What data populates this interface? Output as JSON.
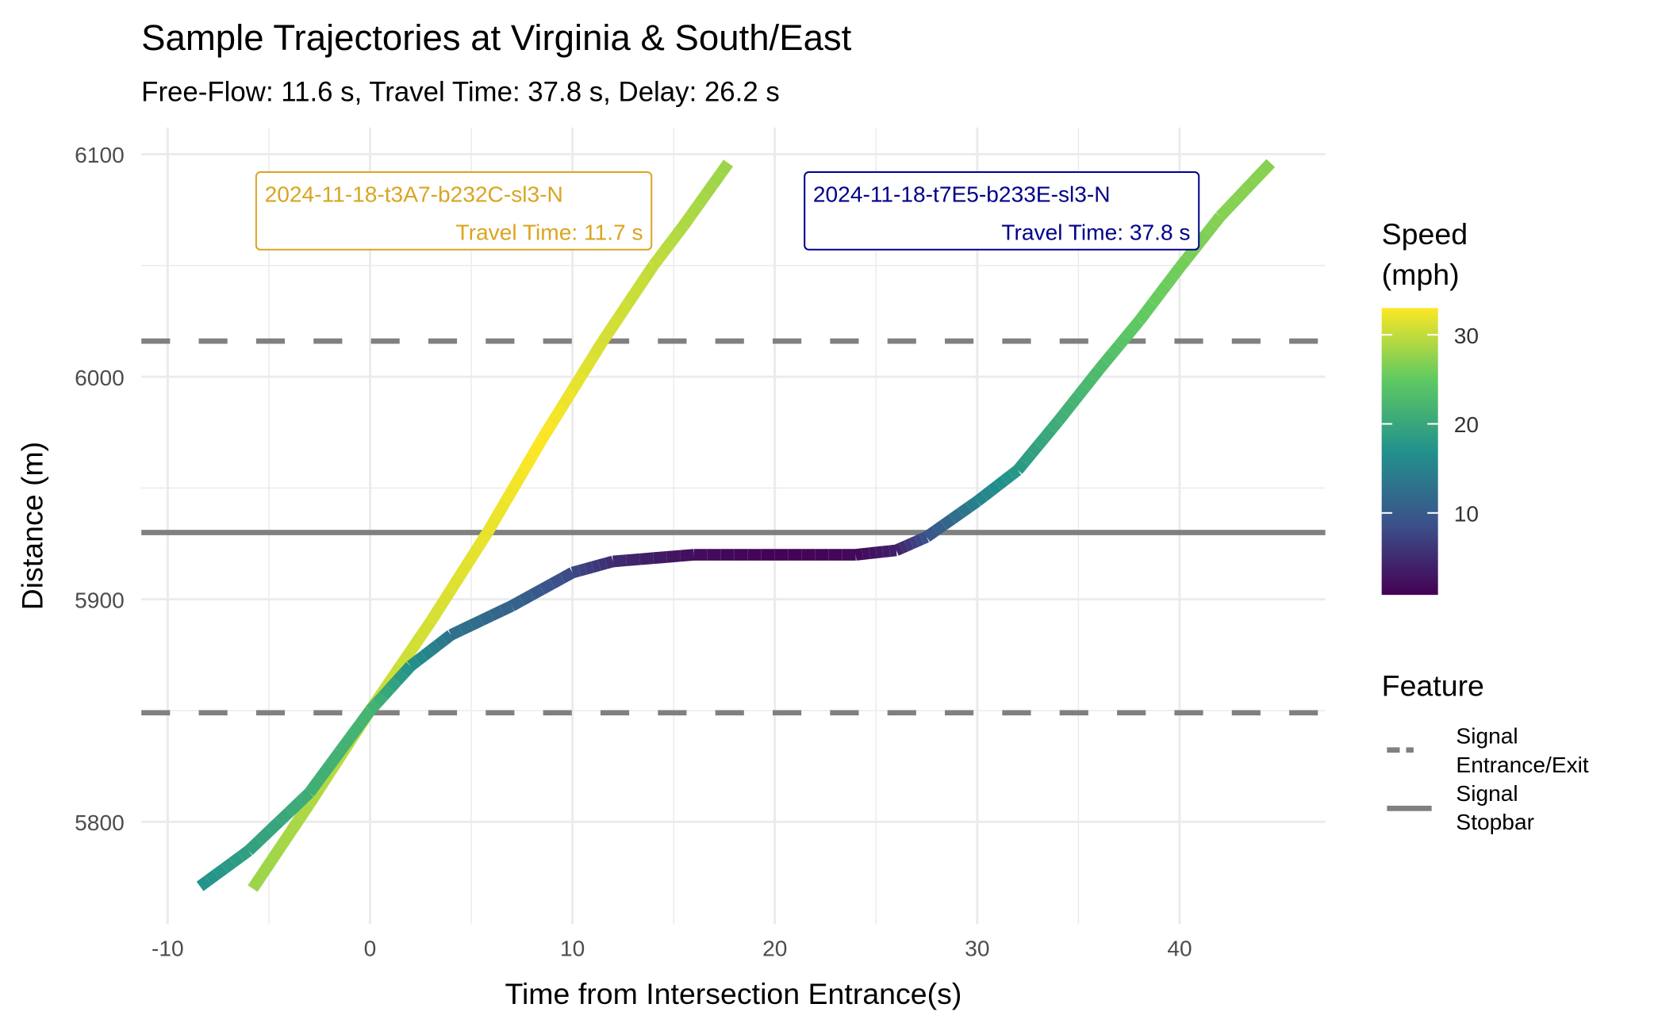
{
  "chart_data": {
    "type": "line",
    "title": "Sample Trajectories at Virginia & South/East",
    "subtitle": "Free-Flow: 11.6 s, Travel Time: 37.8 s, Delay: 26.2 s",
    "xlabel": "Time from Intersection Entrance(s)",
    "ylabel": "Distance (m)",
    "xlim": [
      -11.3,
      47.2
    ],
    "ylim": [
      5754,
      6112
    ],
    "xticks": [
      -10,
      0,
      10,
      20,
      30,
      40
    ],
    "yticks": [
      5800,
      5900,
      6000,
      6100
    ],
    "grid": true,
    "colorbar": {
      "title": [
        "Speed",
        "(mph)"
      ],
      "range": [
        0.8,
        33
      ],
      "ticks": [
        10,
        20,
        30
      ],
      "colormap": "viridis"
    },
    "reference_lines": [
      {
        "feature": "Signal Entrance/Exit",
        "y": 5849,
        "style": "dashed"
      },
      {
        "feature": "Signal Entrance/Exit",
        "y": 6016,
        "style": "dashed"
      },
      {
        "feature": "Signal Stopbar",
        "y": 5930,
        "style": "solid"
      }
    ],
    "legend": {
      "title": "Feature",
      "placement": "right",
      "items": [
        {
          "label": [
            "Signal",
            "Entrance/Exit"
          ],
          "style": "dashed"
        },
        {
          "label": [
            "Signal",
            "Stopbar"
          ],
          "style": "solid"
        }
      ]
    },
    "series": [
      {
        "name": "2024-11-18-t3A7-b232C-sl3-N",
        "travel_time_label": "Travel Time: 11.7 s",
        "color": "#DAA520",
        "t": [
          -5.8,
          -3,
          0,
          3,
          5.8,
          8.5,
          11.5,
          14,
          15.5,
          17.7
        ],
        "d": [
          5770,
          5808,
          5850,
          5890,
          5930,
          5972,
          6016,
          6050,
          6068,
          6096
        ],
        "speed": [
          28,
          29,
          30,
          31,
          32,
          33,
          31,
          30,
          29,
          28
        ]
      },
      {
        "name": "2024-11-18-t7E5-b233E-sl3-N",
        "travel_time_label": "Travel Time: 37.8 s",
        "color": "#00008B",
        "t": [
          -8.4,
          -6,
          -3,
          0,
          2,
          4,
          7,
          10,
          12,
          16,
          20,
          24,
          26,
          27.5,
          30,
          32,
          34,
          36,
          38,
          40,
          42,
          44.5
        ],
        "d": [
          5771,
          5787,
          5813,
          5850,
          5870,
          5884,
          5897,
          5912,
          5917,
          5920,
          5920,
          5920,
          5922,
          5928,
          5944,
          5958,
          5980,
          6003,
          6025,
          6049,
          6072,
          6096
        ],
        "speed": [
          17,
          19,
          21,
          22,
          17,
          13,
          11,
          8,
          5,
          2,
          1,
          1.5,
          4,
          9,
          15,
          18,
          21,
          23,
          25,
          26,
          27,
          27
        ]
      }
    ]
  }
}
